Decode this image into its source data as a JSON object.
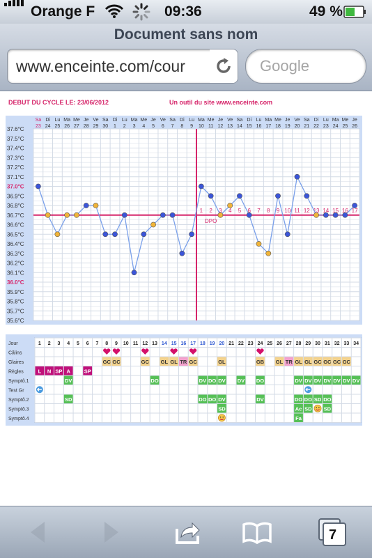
{
  "status": {
    "carrier": "Orange F",
    "time": "09:36",
    "battery": "49 %"
  },
  "browser": {
    "title": "Document sans nom",
    "url": "www.enceinte.com/cour",
    "search_placeholder": "Google",
    "tabs_count": "7"
  },
  "header": {
    "cycle_start": "DEBUT DU CYCLE LE: 23/06/2012",
    "tool": "Un outil du site www.enceinte.com"
  },
  "colors": {
    "accent": "#d6256a",
    "line": "#7aa0ea",
    "dot_blue": "#3b55d9",
    "dot_orange": "#f0b43a",
    "grid_bg": "#ccdcf6"
  },
  "chart_data": {
    "type": "line",
    "x_day_abbr": [
      "Sa",
      "Di",
      "Lu",
      "Ma",
      "Me",
      "Je",
      "Ve",
      "Sa",
      "Di",
      "Lu",
      "Ma",
      "Me",
      "Je",
      "Ve",
      "Sa",
      "Di",
      "Lu",
      "Ma",
      "Me",
      "Je",
      "Ve",
      "Sa",
      "Di",
      "Lu",
      "Ma",
      "Me",
      "Je",
      "Ve",
      "Sa",
      "Di",
      "Lu",
      "Ma",
      "Me",
      "Je"
    ],
    "x_dates": [
      "23",
      "24",
      "25",
      "26",
      "27",
      "28",
      "29",
      "30",
      "1",
      "2",
      "3",
      "4",
      "5",
      "6",
      "7",
      "8",
      "9",
      "10",
      "11",
      "12",
      "13",
      "14",
      "15",
      "16",
      "17",
      "18",
      "19",
      "20",
      "21",
      "22",
      "23",
      "24",
      "25",
      "26"
    ],
    "y_ticks": [
      "37.6°C",
      "37.5°C",
      "37.4°C",
      "37.3°C",
      "37.2°C",
      "37.1°C",
      "37.0°C",
      "36.9°C",
      "36.8°C",
      "36.7°C",
      "36.6°C",
      "36.5°C",
      "36.4°C",
      "36.3°C",
      "36.2°C",
      "36.1°C",
      "36.0°C",
      "35.9°C",
      "35.8°C",
      "35.7°C",
      "35.6°C"
    ],
    "ylim": [
      35.6,
      37.6
    ],
    "cover_line": 36.7,
    "ovulation_day": 17,
    "dpo_label": "DPO",
    "dpo_numbers": [
      "1",
      "2",
      "3",
      "4",
      "5",
      "6",
      "7",
      "8",
      "9",
      "10",
      "11",
      "12",
      "13",
      "14",
      "15",
      "16",
      "17"
    ],
    "values": [
      37.0,
      36.7,
      36.5,
      36.7,
      36.7,
      36.8,
      36.8,
      36.5,
      36.5,
      36.7,
      36.1,
      36.5,
      36.6,
      36.7,
      36.7,
      36.3,
      36.5,
      37.0,
      36.9,
      36.7,
      36.8,
      36.9,
      36.7,
      36.4,
      36.3,
      36.9,
      36.5,
      37.1,
      36.9,
      36.7,
      36.7,
      36.7,
      36.7,
      36.8
    ],
    "point_colors": [
      "b",
      "o",
      "o",
      "o",
      "o",
      "b",
      "o",
      "b",
      "b",
      "b",
      "b",
      "b",
      "o",
      "b",
      "b",
      "b",
      "b",
      "b",
      "b",
      "o",
      "o",
      "b",
      "b",
      "o",
      "o",
      "b",
      "b",
      "b",
      "b",
      "o",
      "b",
      "b",
      "b",
      "b"
    ]
  },
  "table": {
    "labels": [
      "Jour",
      "Câlins",
      "Glaires",
      "Règles",
      "Symptô.1",
      "Test Gr",
      "Symptô.2",
      "Symptô.3",
      "Symptô.4"
    ],
    "days": [
      "1",
      "2",
      "3",
      "4",
      "5",
      "6",
      "7",
      "8",
      "9",
      "10",
      "11",
      "12",
      "13",
      "14",
      "15",
      "16",
      "17",
      "18",
      "19",
      "20",
      "21",
      "22",
      "23",
      "24",
      "25",
      "26",
      "27",
      "28",
      "29",
      "30",
      "31",
      "32",
      "33",
      "34"
    ],
    "calins_days": [
      8,
      9,
      12,
      15,
      17,
      24
    ],
    "cells": [
      {
        "row": 2,
        "col": 8,
        "text": "GC",
        "bg": "#f3d28c"
      },
      {
        "row": 2,
        "col": 9,
        "text": "GC",
        "bg": "#f3d28c"
      },
      {
        "row": 2,
        "col": 12,
        "text": "GC",
        "bg": "#f3d28c"
      },
      {
        "row": 2,
        "col": 14,
        "text": "GL",
        "bg": "#f3d28c"
      },
      {
        "row": 2,
        "col": 15,
        "text": "GL",
        "bg": "#f3d28c"
      },
      {
        "row": 2,
        "col": 16,
        "text": "TR",
        "bg": "#f2a0cc"
      },
      {
        "row": 2,
        "col": 17,
        "text": "GC",
        "bg": "#f3d28c"
      },
      {
        "row": 2,
        "col": 20,
        "text": "GL",
        "bg": "#f3d28c"
      },
      {
        "row": 2,
        "col": 24,
        "text": "GB",
        "bg": "#f3d28c"
      },
      {
        "row": 2,
        "col": 26,
        "text": "GL",
        "bg": "#f3d28c"
      },
      {
        "row": 2,
        "col": 27,
        "text": "TR",
        "bg": "#f2a0cc"
      },
      {
        "row": 2,
        "col": 28,
        "text": "GL",
        "bg": "#f3d28c"
      },
      {
        "row": 2,
        "col": 29,
        "text": "GL",
        "bg": "#f3d28c"
      },
      {
        "row": 2,
        "col": 30,
        "text": "GC",
        "bg": "#f3d28c"
      },
      {
        "row": 2,
        "col": 31,
        "text": "GC",
        "bg": "#f3d28c"
      },
      {
        "row": 2,
        "col": 32,
        "text": "GC",
        "bg": "#f3d28c"
      },
      {
        "row": 2,
        "col": 33,
        "text": "GC",
        "bg": "#f3d28c"
      },
      {
        "row": 3,
        "col": 1,
        "text": "L",
        "bg": "#c0107a"
      },
      {
        "row": 3,
        "col": 2,
        "text": "N",
        "bg": "#c0107a"
      },
      {
        "row": 3,
        "col": 3,
        "text": "SP",
        "bg": "#c0107a"
      },
      {
        "row": 3,
        "col": 4,
        "text": "A",
        "bg": "#c0107a"
      },
      {
        "row": 3,
        "col": 6,
        "text": "SP",
        "bg": "#c0107a"
      },
      {
        "row": 4,
        "col": 4,
        "text": "DV",
        "bg": "#56c056"
      },
      {
        "row": 4,
        "col": 13,
        "text": "DO",
        "bg": "#56c056"
      },
      {
        "row": 4,
        "col": 18,
        "text": "DV",
        "bg": "#56c056"
      },
      {
        "row": 4,
        "col": 19,
        "text": "DO",
        "bg": "#56c056"
      },
      {
        "row": 4,
        "col": 20,
        "text": "DV",
        "bg": "#56c056"
      },
      {
        "row": 4,
        "col": 22,
        "text": "DV",
        "bg": "#56c056"
      },
      {
        "row": 4,
        "col": 24,
        "text": "DO",
        "bg": "#56c056"
      },
      {
        "row": 4,
        "col": 28,
        "text": "DV",
        "bg": "#56c056"
      },
      {
        "row": 4,
        "col": 29,
        "text": "DV",
        "bg": "#56c056"
      },
      {
        "row": 4,
        "col": 30,
        "text": "DV",
        "bg": "#56c056"
      },
      {
        "row": 4,
        "col": 31,
        "text": "DV",
        "bg": "#56c056"
      },
      {
        "row": 4,
        "col": 32,
        "text": "DV",
        "bg": "#56c056"
      },
      {
        "row": 4,
        "col": 33,
        "text": "DV",
        "bg": "#56c056"
      },
      {
        "row": 4,
        "col": 34,
        "text": "DV",
        "bg": "#56c056"
      },
      {
        "row": 6,
        "col": 4,
        "text": "SD",
        "bg": "#56c056"
      },
      {
        "row": 6,
        "col": 18,
        "text": "DO",
        "bg": "#56c056"
      },
      {
        "row": 6,
        "col": 19,
        "text": "DO",
        "bg": "#56c056"
      },
      {
        "row": 6,
        "col": 20,
        "text": "DV",
        "bg": "#56c056"
      },
      {
        "row": 6,
        "col": 24,
        "text": "DV",
        "bg": "#56c056"
      },
      {
        "row": 6,
        "col": 28,
        "text": "DO",
        "bg": "#56c056"
      },
      {
        "row": 6,
        "col": 29,
        "text": "DO",
        "bg": "#56c056"
      },
      {
        "row": 6,
        "col": 30,
        "text": "SD",
        "bg": "#56c056"
      },
      {
        "row": 6,
        "col": 31,
        "text": "DO",
        "bg": "#56c056"
      },
      {
        "row": 7,
        "col": 20,
        "text": "SD",
        "bg": "#56c056"
      },
      {
        "row": 7,
        "col": 28,
        "text": "Ac",
        "bg": "#56c056"
      },
      {
        "row": 7,
        "col": 29,
        "text": "SD",
        "bg": "#56c056"
      },
      {
        "row": 7,
        "col": 31,
        "text": "SD",
        "bg": "#56c056"
      },
      {
        "row": 8,
        "col": 28,
        "text": "Fa",
        "bg": "#56c056"
      }
    ],
    "test_gr_days": [
      1,
      29
    ],
    "smiley_cells": [
      {
        "row": 7,
        "col": 30
      },
      {
        "row": 8,
        "col": 20
      }
    ]
  }
}
